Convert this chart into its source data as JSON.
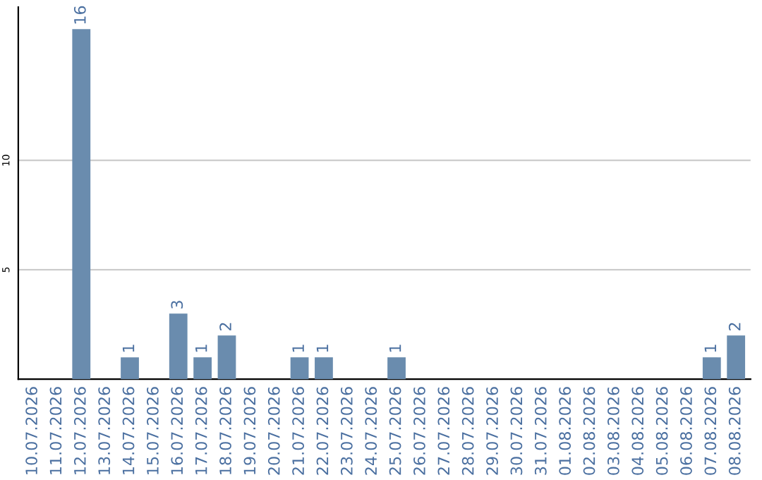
{
  "chart_data": {
    "type": "bar",
    "categories": [
      "10.07.2026",
      "11.07.2026",
      "12.07.2026",
      "13.07.2026",
      "14.07.2026",
      "15.07.2026",
      "16.07.2026",
      "17.07.2026",
      "18.07.2026",
      "19.07.2026",
      "20.07.2026",
      "21.07.2026",
      "22.07.2026",
      "23.07.2026",
      "24.07.2026",
      "25.07.2026",
      "26.07.2026",
      "27.07.2026",
      "28.07.2026",
      "29.07.2026",
      "30.07.2026",
      "31.07.2026",
      "01.08.2026",
      "02.08.2026",
      "03.08.2026",
      "04.08.2026",
      "05.08.2026",
      "06.08.2026",
      "07.08.2026",
      "08.08.2026"
    ],
    "values": [
      0,
      0,
      16,
      0,
      1,
      0,
      3,
      1,
      2,
      0,
      0,
      1,
      1,
      0,
      0,
      1,
      0,
      0,
      0,
      0,
      0,
      0,
      0,
      0,
      0,
      0,
      0,
      0,
      1,
      2
    ],
    "value_labels": [
      null,
      null,
      "16",
      null,
      "1",
      null,
      "3",
      "1",
      "2",
      null,
      null,
      "1",
      "1",
      null,
      null,
      "1",
      null,
      null,
      null,
      null,
      null,
      null,
      null,
      null,
      null,
      null,
      null,
      null,
      "1",
      "2"
    ],
    "color": "#6a8cae",
    "ylim": [
      0,
      17
    ],
    "yticks": [
      5,
      10
    ],
    "grid": "y",
    "legend": false
  }
}
